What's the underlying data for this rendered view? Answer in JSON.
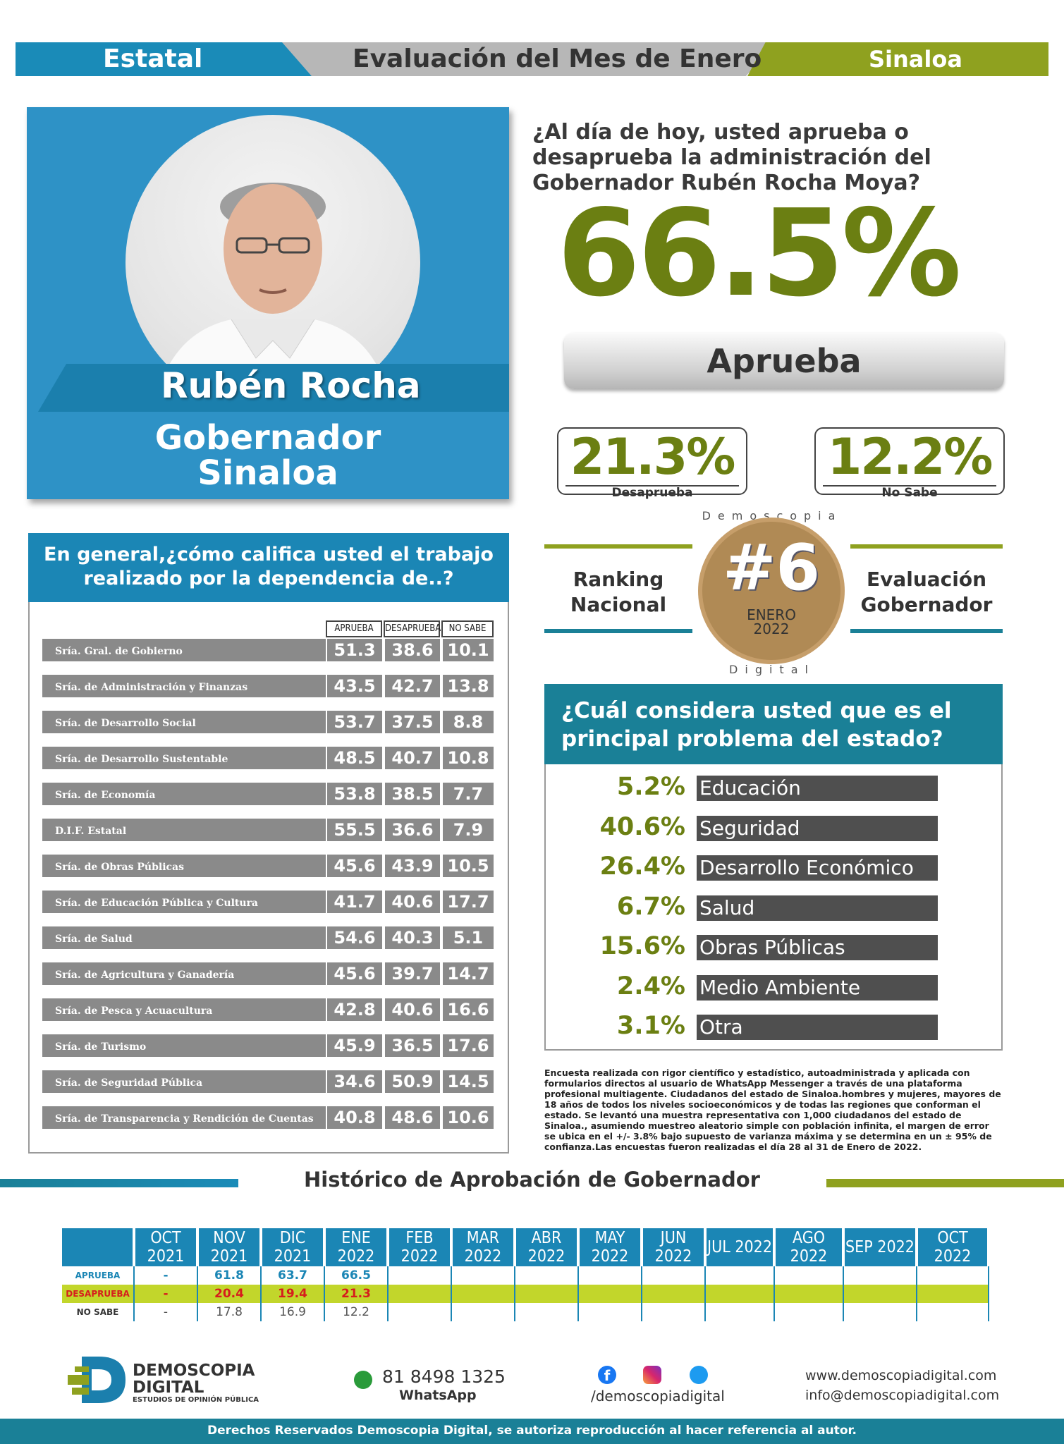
{
  "header": {
    "left": "Estatal",
    "center": "Evaluación del Mes de Enero",
    "right": "Sinaloa"
  },
  "profile": {
    "name": "Rubén Rocha",
    "role_line1": "Gobernador",
    "role_line2": "Sinaloa"
  },
  "question": {
    "text": "¿Al día de hoy, usted aprueba o desaprueba la administración del Gobernador Rubén Rocha Moya?",
    "approve_value": "66.5%",
    "approve_label": "Aprueba",
    "disapprove_value": "21.3%",
    "disapprove_label": "Desaprueba",
    "nosabe_value": "12.2%",
    "nosabe_label": "No Sabe"
  },
  "ranking": {
    "left_line1": "Ranking",
    "left_line2": "Nacional",
    "right_line1": "Evaluación",
    "right_line2": "Gobernador",
    "seal_top": "Demoscopia",
    "seal_bottom": "Digital",
    "rank": "#6",
    "month": "ENERO",
    "year": "2022"
  },
  "dependencias": {
    "title": "En general,¿cómo califica usted el trabajo realizado por la dependencia de..?",
    "columns": [
      "APRUEBA",
      "DESAPRUEBA",
      "NO SABE"
    ],
    "rows": [
      {
        "name": "Sría. Gral. de Gobierno",
        "a": "51.3",
        "d": "38.6",
        "n": "10.1"
      },
      {
        "name": "Sría. de Administración y Finanzas",
        "a": "43.5",
        "d": "42.7",
        "n": "13.8"
      },
      {
        "name": "Sría. de Desarrollo Social",
        "a": "53.7",
        "d": "37.5",
        "n": "8.8"
      },
      {
        "name": "Sría. de Desarrollo Sustentable",
        "a": "48.5",
        "d": "40.7",
        "n": "10.8"
      },
      {
        "name": "Sría. de Economía",
        "a": "53.8",
        "d": "38.5",
        "n": "7.7"
      },
      {
        "name": "D.I.F. Estatal",
        "a": "55.5",
        "d": "36.6",
        "n": "7.9"
      },
      {
        "name": "Sría. de Obras Públicas",
        "a": "45.6",
        "d": "43.9",
        "n": "10.5"
      },
      {
        "name": "Sría. de Educación Pública y Cultura",
        "a": "41.7",
        "d": "40.6",
        "n": "17.7"
      },
      {
        "name": "Sría. de Salud",
        "a": "54.6",
        "d": "40.3",
        "n": "5.1"
      },
      {
        "name": "Sría. de Agricultura y Ganadería",
        "a": "45.6",
        "d": "39.7",
        "n": "14.7"
      },
      {
        "name": "Sría. de Pesca y Acuacultura",
        "a": "42.8",
        "d": "40.6",
        "n": "16.6"
      },
      {
        "name": "Sría. de Turismo",
        "a": "45.9",
        "d": "36.5",
        "n": "17.6"
      },
      {
        "name": "Sría. de Seguridad Pública",
        "a": "34.6",
        "d": "50.9",
        "n": "14.5"
      },
      {
        "name": "Sría. de Transparencia y Rendición de Cuentas",
        "a": "40.8",
        "d": "48.6",
        "n": "10.6"
      }
    ]
  },
  "problema": {
    "title": "¿Cuál considera usted que es el principal problema del estado?",
    "items": [
      {
        "value": "5.2%",
        "label": "Educación"
      },
      {
        "value": "40.6%",
        "label": "Seguridad"
      },
      {
        "value": "26.4%",
        "label": "Desarrollo Económico"
      },
      {
        "value": "6.7%",
        "label": "Salud"
      },
      {
        "value": "15.6%",
        "label": "Obras Públicas"
      },
      {
        "value": "2.4%",
        "label": "Medio Ambiente"
      },
      {
        "value": "3.1%",
        "label": "Otra"
      }
    ]
  },
  "note": "Encuesta realizada con rigor científico y estadístico, autoadministrada y aplicada con formularios directos al usuario de WhatsApp Messenger a través de una plataforma profesional multiagente. Ciudadanos del estado de Sinaloa.hombres y mujeres, mayores de 18 años de todos los niveles socioeconómicos y de todas las regiones que conforman el estado. Se levantó una muestra representativa con 1,000 ciudadanos del estado de Sinaloa., asumiendo muestreo aleatorio simple con población infinita, el margen de error se ubica en el +/- 3.8% bajo supuesto de varianza máxima y se determina en un ± 95% de confianza.Las encuestas fueron realizadas el día 28 al 31 de Enero de 2022.",
  "historico": {
    "title": "Histórico de Aprobación de Gobernador",
    "months": [
      "OCT 2021",
      "NOV 2021",
      "DIC 2021",
      "ENE 2022",
      "FEB 2022",
      "MAR 2022",
      "ABR 2022",
      "MAY 2022",
      "JUN 2022",
      "JUL 2022",
      "AGO 2022",
      "SEP 2022",
      "OCT 2022"
    ],
    "rows": [
      {
        "label": "APRUEBA",
        "values": [
          "-",
          "61.8",
          "63.7",
          "66.5",
          "",
          "",
          "",
          "",
          "",
          "",
          "",
          "",
          ""
        ]
      },
      {
        "label": "DESAPRUEBA",
        "values": [
          "-",
          "20.4",
          "19.4",
          "21.3",
          "",
          "",
          "",
          "",
          "",
          "",
          "",
          "",
          ""
        ]
      },
      {
        "label": "NO SABE",
        "values": [
          "-",
          "17.8",
          "16.9",
          "12.2",
          "",
          "",
          "",
          "",
          "",
          "",
          "",
          "",
          ""
        ]
      }
    ]
  },
  "contact": {
    "brand1": "DEMOSCOPIA",
    "brand2": "DIGITAL",
    "brand_sub": "ESTUDIOS DE OPINIÓN PÚBLICA",
    "phone": "81 8498 1325",
    "phone_label": "WhatsApp",
    "social": "/demoscopiadigital",
    "web": "www.demoscopiadigital.com",
    "email": "info@demoscopiadigital.com"
  },
  "footer": "Derechos Reservados Demoscopia Digital, se autoriza reproducción al hacer referencia al autor.",
  "colors": {
    "blue": "#1b86b5",
    "green": "#6b7f12",
    "lime": "#c2d62b",
    "gray": "#8a8a8a"
  }
}
